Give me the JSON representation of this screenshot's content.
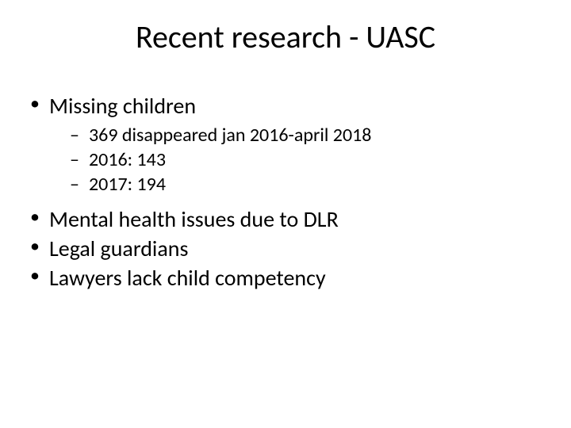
{
  "title": "Recent research - UASC",
  "bullets": [
    {
      "text": "Missing children",
      "sub": [
        "369 disappeared jan 2016-april 2018",
        "2016: 143",
        "2017: 194"
      ]
    },
    {
      "text": "Mental health issues due to DLR"
    },
    {
      "text": "Legal guardians"
    },
    {
      "text": "Lawyers lack child competency"
    }
  ]
}
